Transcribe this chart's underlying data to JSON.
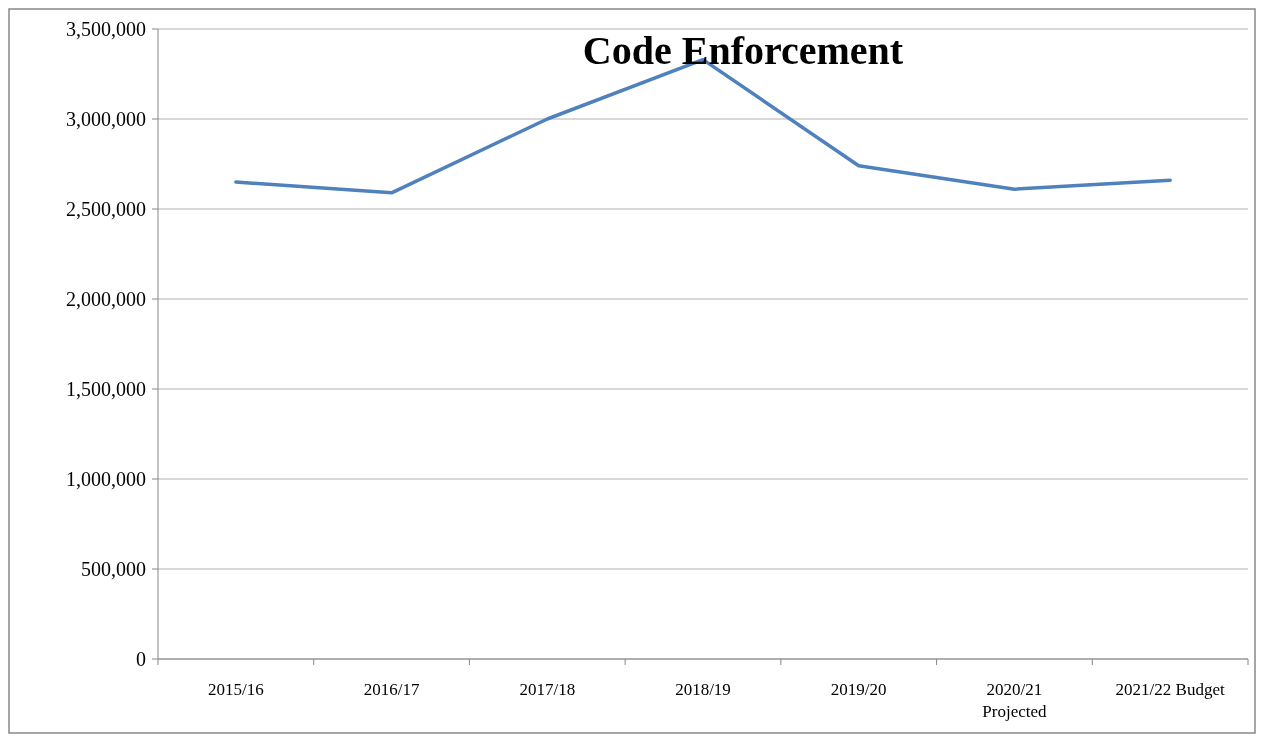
{
  "chart_data": {
    "type": "line",
    "title": "Code Enforcement",
    "categories": [
      "2015/16",
      "2016/17",
      "2017/18",
      "2018/19",
      "2019/20",
      "2020/21\nProjected",
      "2021/22 Budget"
    ],
    "values": [
      2650000,
      2590000,
      3000000,
      3330000,
      2740000,
      2610000,
      2660000
    ],
    "color": "#4f81bd",
    "ylim": [
      0,
      3500000
    ],
    "yticks": [
      {
        "value": 0,
        "label": "0"
      },
      {
        "value": 500000,
        "label": "500,000"
      },
      {
        "value": 1000000,
        "label": "1,000,000"
      },
      {
        "value": 1500000,
        "label": "1,500,000"
      },
      {
        "value": 2000000,
        "label": "2,000,000"
      },
      {
        "value": 2500000,
        "label": "2,500,000"
      },
      {
        "value": 3000000,
        "label": "3,000,000"
      },
      {
        "value": 3500000,
        "label": "3,500,000"
      }
    ],
    "grid": "y",
    "marker": "none",
    "line_style": "solid"
  }
}
